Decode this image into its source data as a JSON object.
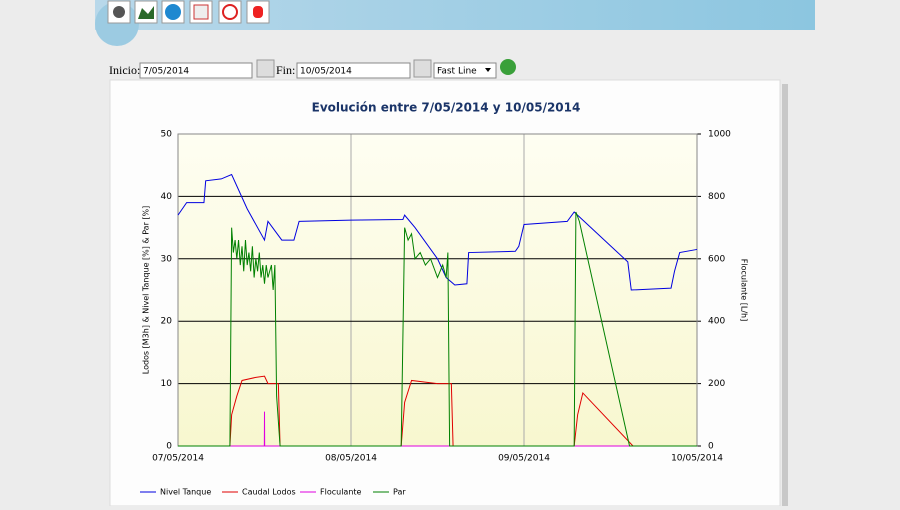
{
  "form": {
    "start_label": "Inicio:",
    "start_value": "7/05/2014",
    "end_label": "Fin:",
    "end_value": "10/05/2014",
    "chart_style": "Fast Line"
  },
  "chart_data": {
    "type": "line",
    "title": "Evolución entre 7/05/2014 y 10/05/2014",
    "y_label": "Lodos [M3h] & Nivel Tanque [%] & Par [%]",
    "y2_label": "Floculante [L/h]",
    "xlim": [
      0,
      3
    ],
    "xticks": [
      {
        "value": 0,
        "label": "07/05/2014"
      },
      {
        "value": 1,
        "label": "08/05/2014"
      },
      {
        "value": 2,
        "label": "09/05/2014"
      },
      {
        "value": 3,
        "label": "10/05/2014"
      }
    ],
    "ylim": [
      0,
      50
    ],
    "yticks": [
      0,
      10,
      20,
      30,
      40,
      50
    ],
    "y2lim": [
      0,
      1000
    ],
    "y2ticks": [
      0,
      200,
      400,
      600,
      800,
      1000
    ],
    "grid": true,
    "series": [
      {
        "name": "Nivel Tanque",
        "color": "#0000e0",
        "x": [
          0,
          0.05,
          0.15,
          0.16,
          0.25,
          0.31,
          0.4,
          0.5,
          0.52,
          0.6,
          0.67,
          0.7,
          1.0,
          1.3,
          1.31,
          1.37,
          1.5,
          1.55,
          1.6,
          1.67,
          1.68,
          1.95,
          1.97,
          2.0,
          2.25,
          2.29,
          2.6,
          2.62,
          2.85,
          2.87,
          2.9,
          3.0
        ],
        "values": [
          37,
          39,
          39,
          42.5,
          42.8,
          43.5,
          38,
          33,
          36,
          33,
          33,
          36,
          36.2,
          36.3,
          37,
          35,
          30,
          27,
          25.8,
          26,
          31,
          31.2,
          32,
          35.5,
          36,
          37.5,
          29.5,
          25,
          25.3,
          28,
          31,
          31.5
        ]
      },
      {
        "name": "Caudal Lodos",
        "color": "#e00000",
        "x": [
          0,
          0.3,
          0.31,
          0.34,
          0.37,
          0.45,
          0.5,
          0.52,
          0.58,
          0.59,
          1.29,
          1.31,
          1.35,
          1.5,
          1.58,
          1.59,
          2.29,
          2.31,
          2.34,
          2.63,
          3.0
        ],
        "values": [
          0,
          0,
          5,
          8,
          10.5,
          11,
          11.2,
          10,
          10,
          0,
          0,
          7,
          10.5,
          10,
          10,
          0,
          0,
          5,
          8.5,
          0,
          0
        ]
      },
      {
        "name": "Floculante",
        "color": "#e000e0",
        "axis": "y2",
        "x": [
          0,
          0.499,
          0.5,
          0.501,
          3.0
        ],
        "values": [
          0,
          0,
          110,
          0,
          0
        ]
      },
      {
        "name": "Par",
        "color": "#008000",
        "x": [
          0,
          0.3,
          0.31,
          0.32,
          0.33,
          0.34,
          0.35,
          0.36,
          0.37,
          0.38,
          0.39,
          0.4,
          0.41,
          0.42,
          0.43,
          0.44,
          0.45,
          0.46,
          0.47,
          0.48,
          0.49,
          0.5,
          0.51,
          0.52,
          0.53,
          0.54,
          0.55,
          0.56,
          0.57,
          0.59,
          1.29,
          1.31,
          1.33,
          1.35,
          1.37,
          1.4,
          1.43,
          1.46,
          1.5,
          1.53,
          1.55,
          1.56,
          1.57,
          2.29,
          2.3,
          2.32,
          2.61,
          3.0
        ],
        "values": [
          0,
          0,
          35,
          31,
          33,
          30,
          33,
          29,
          32,
          28,
          33,
          29,
          31,
          28,
          32,
          27,
          30,
          28,
          31,
          27,
          29,
          26,
          29,
          27,
          28,
          29,
          25,
          29,
          8,
          0,
          0,
          35,
          33,
          34,
          30,
          31,
          29,
          30,
          27,
          29,
          27,
          31,
          0,
          0,
          37.5,
          36,
          0,
          0
        ]
      }
    ]
  }
}
